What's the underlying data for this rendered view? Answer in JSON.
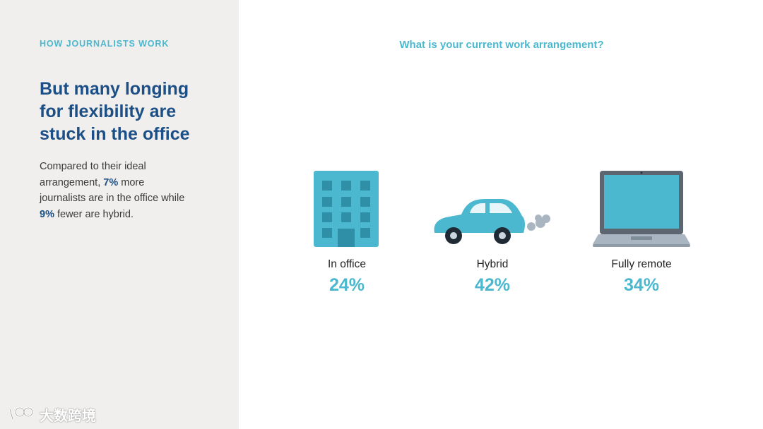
{
  "left_panel": {
    "eyebrow": "HOW JOURNALISTS WORK",
    "headline": "But many longing for flexibility are stuck in the office",
    "body": {
      "part1": "Compared to their ideal arrangement, ",
      "highlight1": "7%",
      "part2": " more journalists are in the office while ",
      "highlight2": "9%",
      "part3": " fewer are hybrid."
    }
  },
  "chart_data": {
    "type": "bar",
    "title": "What is your current work arrangement?",
    "categories": [
      "In office",
      "Hybrid",
      "Fully remote"
    ],
    "values": [
      24,
      42,
      34
    ],
    "value_labels": [
      "24%",
      "42%",
      "34%"
    ],
    "icons": [
      "office-building-icon",
      "car-icon",
      "laptop-icon"
    ]
  },
  "watermark": {
    "text": "大数跨境"
  },
  "colors": {
    "accent": "#4bb8cf",
    "headline": "#1b4f86",
    "panel": "#f0efed"
  }
}
